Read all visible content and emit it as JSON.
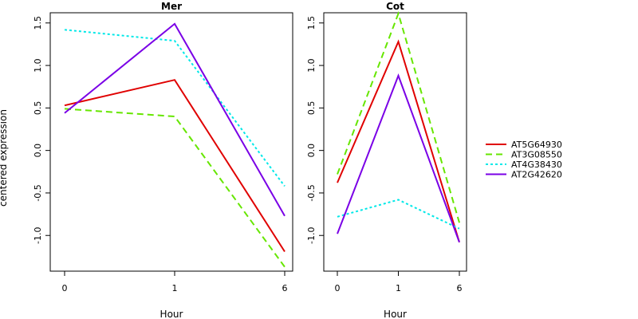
{
  "chart_data": {
    "type": "line",
    "ylabel": "centered expression",
    "series_styles": [
      {
        "name": "AT5G64930",
        "color": "#e00000",
        "dash": "solid"
      },
      {
        "name": "AT3G08550",
        "color": "#66e600",
        "dash": "dashed"
      },
      {
        "name": "AT4G38430",
        "color": "#00e8e8",
        "dash": "dotted"
      },
      {
        "name": "AT2G42620",
        "color": "#7a00e6",
        "dash": "solid"
      }
    ],
    "panels": [
      {
        "title": "Mer",
        "xlabel": "Hour",
        "categories": [
          "0",
          "1",
          "6"
        ],
        "ylim": [
          -1.42,
          1.62
        ],
        "yticks": [
          -1.0,
          -0.5,
          0.0,
          0.5,
          1.0,
          1.5
        ],
        "ytick_labels": [
          "-1.0",
          "-0.5",
          "0.0",
          "0.5",
          "1.0",
          "1.5"
        ],
        "series": [
          {
            "name": "AT5G64930",
            "values": [
              0.53,
              0.83,
              -1.19
            ]
          },
          {
            "name": "AT3G08550",
            "values": [
              0.49,
              0.4,
              -1.37
            ]
          },
          {
            "name": "AT4G38430",
            "values": [
              1.42,
              1.29,
              -0.42
            ]
          },
          {
            "name": "AT2G42620",
            "values": [
              0.44,
              1.49,
              -0.77
            ]
          }
        ]
      },
      {
        "title": "Cot",
        "xlabel": "Hour",
        "categories": [
          "0",
          "1",
          "6"
        ],
        "ylim": [
          -1.42,
          1.62
        ],
        "yticks": [
          -1.0,
          -0.5,
          0.0,
          0.5,
          1.0,
          1.5
        ],
        "ytick_labels": [
          "-1.0",
          "-0.5",
          "0.0",
          "0.5",
          "1.0",
          "1.5"
        ],
        "series": [
          {
            "name": "AT5G64930",
            "values": [
              -0.38,
              1.28,
              -1.08
            ]
          },
          {
            "name": "AT3G08550",
            "values": [
              -0.28,
              1.61,
              -0.85
            ]
          },
          {
            "name": "AT4G38430",
            "values": [
              -0.78,
              -0.58,
              -0.92
            ]
          },
          {
            "name": "AT2G42620",
            "values": [
              -0.98,
              0.88,
              -1.08
            ]
          }
        ]
      }
    ],
    "legend": {
      "placement": "right",
      "entries": [
        "AT5G64930",
        "AT3G08550",
        "AT4G38430",
        "AT2G42620"
      ]
    }
  }
}
